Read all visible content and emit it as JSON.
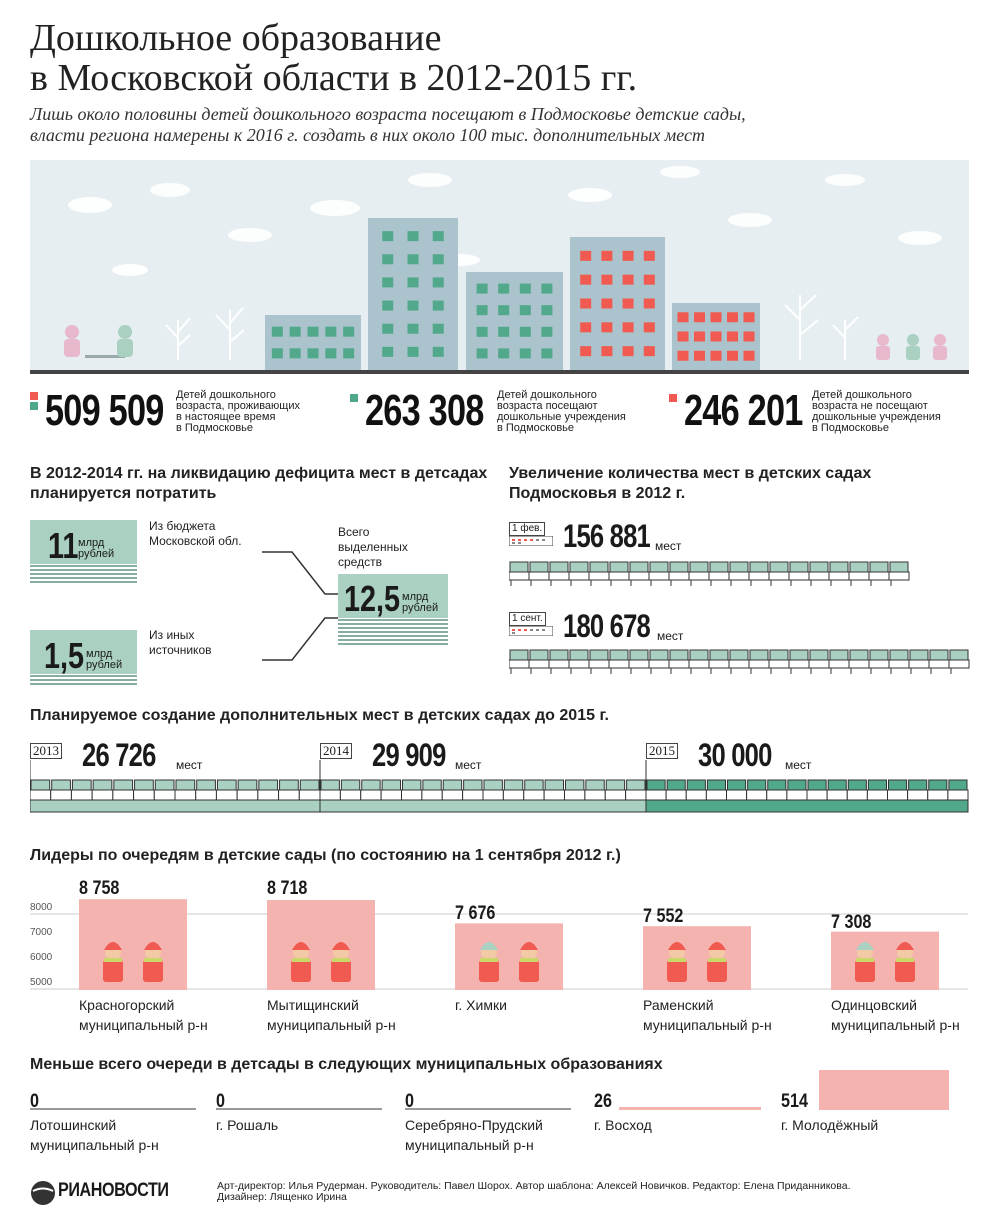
{
  "header": {
    "title_line1": "Дошкольное образование",
    "title_line2": "в Московской области в 2012-2015 гг.",
    "subtitle_line1": "Лишь около половины детей дошкольного возраста посещают в Подмосковье детские сады,",
    "subtitle_line2": "власти региона намерены к 2016 г. создать в них около 100 тыс. дополнительных мест"
  },
  "colors": {
    "teal": "#52a88a",
    "lightteal": "#a9d0c0",
    "red": "#f05a50",
    "pink": "#f4b3ae",
    "building": "#aac3cc",
    "ink": "#222222"
  },
  "stats": [
    {
      "value": "509 509",
      "desc1": "Детей дошкольного",
      "desc2": "возраста, проживающих",
      "desc3": "в настоящее время",
      "desc4": "в Подмосковье"
    },
    {
      "value": "263 308",
      "desc1": "Детей дошкольного",
      "desc2": "возраста посещают",
      "desc3": "дошкольные учреждения",
      "desc4": "в Подмосковье"
    },
    {
      "value": "246 201",
      "desc1": "Детей дошкольного",
      "desc2": "возраста не посещают",
      "desc3": "дошкольные учреждения",
      "desc4": "в Подмосковье"
    }
  ],
  "funding": {
    "heading1": "В 2012-2014 гг. на ликвидацию дефицита мест в детсадах",
    "heading2": "планируется потратить",
    "budget": {
      "value": "11",
      "unit1": "млрд",
      "unit2": "рублей",
      "label1": "Из бюджета",
      "label2": "Московской обл."
    },
    "other": {
      "value": "1,5",
      "unit1": "млрд",
      "unit2": "рублей",
      "label1": "Из иных",
      "label2": "источников"
    },
    "total": {
      "value": "12,5",
      "unit1": "млрд",
      "unit2": "рублей",
      "label1": "Всего",
      "label2": "выделенных",
      "label3": "средств"
    }
  },
  "increase": {
    "heading1": "Увеличение количества мест в детских садах",
    "heading2": "Подмосковья в 2012 г.",
    "feb": {
      "date": "1 фев.",
      "value": "156 881",
      "unit": "мест"
    },
    "sep": {
      "date": "1 сент.",
      "value": "180 678",
      "unit": "мест"
    }
  },
  "planned": {
    "heading": "Планируемое создание дополнительных мест в детских садах до 2015 г.",
    "years": [
      {
        "year": "2013",
        "value": "26 726",
        "unit": "мест"
      },
      {
        "year": "2014",
        "value": "29 909",
        "unit": "мест"
      },
      {
        "year": "2015",
        "value": "30 000",
        "unit": "мест"
      }
    ]
  },
  "leaders": {
    "heading": "Лидеры по очередям в детские сады (по состоянию на 1 сентября 2012 г.)",
    "axis": [
      "8000",
      "7000",
      "6000",
      "5000"
    ],
    "items": [
      {
        "value": "8 758",
        "name1": "Красногорский",
        "name2": "муниципальный р-н"
      },
      {
        "value": "8 718",
        "name1": "Мытищинский",
        "name2": "муниципальный р-н"
      },
      {
        "value": "7 676",
        "name1": "г. Химки",
        "name2": ""
      },
      {
        "value": "7 552",
        "name1": "Раменский",
        "name2": "муниципальный р-н"
      },
      {
        "value": "7 308",
        "name1": "Одинцовский",
        "name2": "муниципальный р-н"
      }
    ]
  },
  "smallest": {
    "heading": "Меньше всего очереди в детсады в следующих муниципальных образованиях",
    "items": [
      {
        "value": "0",
        "name1": "Лотошинский",
        "name2": "муниципальный р-н"
      },
      {
        "value": "0",
        "name1": "г. Рошаль",
        "name2": ""
      },
      {
        "value": "0",
        "name1": "Серебряно-Прудский",
        "name2": "муниципальный р-н"
      },
      {
        "value": "26",
        "name1": "г. Восход",
        "name2": ""
      },
      {
        "value": "514",
        "name1": "г. Молодёжный",
        "name2": ""
      }
    ]
  },
  "footer": {
    "logo_text": "РИАНОВОСТИ",
    "credits1": "Арт-директор: Илья Рудерман. Руководитель: Павел Шорох. Автор шаблона: Алексей Новичков. Редактор: Елена Приданникова.",
    "credits2": "Дизайнер: Лященко Ирина"
  },
  "chart_data": [
    {
      "type": "bar",
      "title": "Лидеры по очередям в детские сады (по состоянию на 1 сентября 2012 г.)",
      "categories": [
        "Красногорский муниципальный р-н",
        "Мытищинский муниципальный р-н",
        "г. Химки",
        "Раменский муниципальный р-н",
        "Одинцовский муниципальный р-н"
      ],
      "values": [
        8758,
        8718,
        7676,
        7552,
        7308
      ],
      "ylim": [
        4700,
        8900
      ],
      "yticks": [
        5000,
        6000,
        7000,
        8000
      ]
    },
    {
      "type": "bar",
      "title": "Меньше всего очереди в детсады в следующих муниципальных образованиях",
      "categories": [
        "Лотошинский муниципальный р-н",
        "г. Рошаль",
        "Серебряно-Прудский муниципальный р-н",
        "г. Восход",
        "г. Молодёжный"
      ],
      "values": [
        0,
        0,
        0,
        26,
        514
      ]
    }
  ]
}
